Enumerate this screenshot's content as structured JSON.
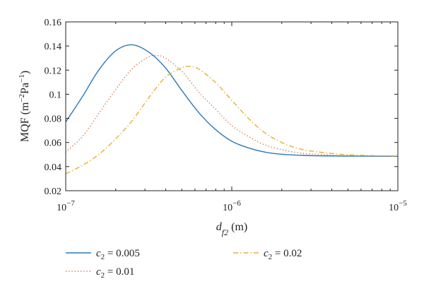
{
  "chart_data": {
    "type": "line",
    "title": "",
    "xlabel": {
      "main": "d",
      "sub": "f2",
      "unit": " (m)"
    },
    "ylabel": {
      "prefix": "MQF (m",
      "sup1": "−2",
      "mid": "Pa",
      "sup2": "−1",
      "suffix": ")"
    },
    "x_scale": "log",
    "xlim": [
      1e-07,
      1e-05
    ],
    "ylim": [
      0.02,
      0.16
    ],
    "x_ticks": [
      {
        "value": 1e-07,
        "base": "10",
        "exp": "−7"
      },
      {
        "value": 1e-06,
        "base": "10",
        "exp": "−6"
      },
      {
        "value": 1e-05,
        "base": "10",
        "exp": "−5"
      }
    ],
    "y_ticks": [
      {
        "value": 0.02,
        "label": "0.02"
      },
      {
        "value": 0.04,
        "label": "0.04"
      },
      {
        "value": 0.06,
        "label": "0.06"
      },
      {
        "value": 0.08,
        "label": "0.08"
      },
      {
        "value": 0.1,
        "label": "0.1"
      },
      {
        "value": 0.12,
        "label": "0.12"
      },
      {
        "value": 0.14,
        "label": "0.14"
      },
      {
        "value": 0.16,
        "label": "0.16"
      }
    ],
    "grid": false,
    "legend_position": "below",
    "series": [
      {
        "name": {
          "var": "c",
          "sub": "2",
          "rest": " = 0.005"
        },
        "color": "#2a7ab8",
        "style": "solid",
        "x": [
          1e-07,
          1.26e-07,
          1.58e-07,
          2e-07,
          2.51e-07,
          3.16e-07,
          3.98e-07,
          5.01e-07,
          6.31e-07,
          7.94e-07,
          1e-06,
          1.26e-06,
          1.58e-06,
          2e-06,
          2.51e-06,
          3.16e-06,
          5.01e-06,
          1e-05
        ],
        "y": [
          0.077,
          0.098,
          0.12,
          0.136,
          0.141,
          0.135,
          0.122,
          0.103,
          0.085,
          0.071,
          0.061,
          0.0555,
          0.052,
          0.0502,
          0.0495,
          0.049,
          0.0487,
          0.0485
        ]
      },
      {
        "name": {
          "var": "c",
          "sub": "2",
          "rest": " = 0.01"
        },
        "color": "#c96a3f",
        "style": "dotted",
        "x": [
          1e-07,
          1.26e-07,
          1.58e-07,
          2e-07,
          2.51e-07,
          3.16e-07,
          3.55e-07,
          3.98e-07,
          5.01e-07,
          6.31e-07,
          7.94e-07,
          1e-06,
          1.26e-06,
          1.58e-06,
          2e-06,
          2.51e-06,
          3.16e-06,
          5.01e-06,
          1e-05
        ],
        "y": [
          0.052,
          0.065,
          0.084,
          0.104,
          0.121,
          0.131,
          0.132,
          0.13,
          0.119,
          0.102,
          0.088,
          0.074,
          0.065,
          0.058,
          0.054,
          0.0515,
          0.0503,
          0.049,
          0.0486
        ]
      },
      {
        "name": {
          "var": "c",
          "sub": "2",
          "rest": " = 0.02"
        },
        "color": "#e3b232",
        "style": "dashdot",
        "x": [
          1e-07,
          1.26e-07,
          1.58e-07,
          2e-07,
          2.51e-07,
          3.16e-07,
          3.98e-07,
          5.01e-07,
          5.62e-07,
          6.31e-07,
          7.94e-07,
          1e-06,
          1.26e-06,
          1.58e-06,
          2e-06,
          2.51e-06,
          3.16e-06,
          5.01e-06,
          1e-05
        ],
        "y": [
          0.034,
          0.041,
          0.05,
          0.063,
          0.078,
          0.097,
          0.114,
          0.122,
          0.123,
          0.121,
          0.11,
          0.095,
          0.08,
          0.068,
          0.06,
          0.055,
          0.0525,
          0.0498,
          0.0488
        ]
      }
    ]
  }
}
